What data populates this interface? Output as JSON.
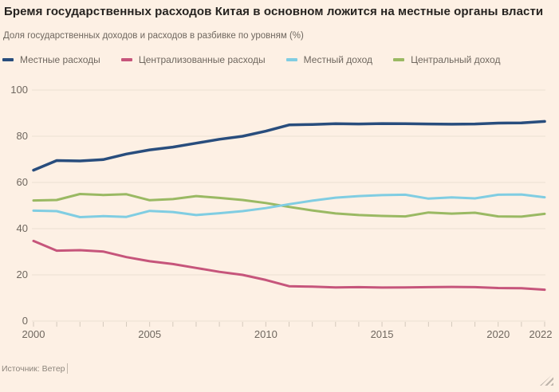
{
  "header": {
    "title": "Бремя государственных расходов Китая в основном ложится на местные органы власти",
    "subtitle": "Доля государственных доходов и расходов в разбивке по уровням (%)"
  },
  "footer": {
    "source": "Источник: Ветер"
  },
  "colors": {
    "background": "#fdf0e4",
    "title_text": "#262320",
    "muted_text": "#6f675f",
    "source_text": "#8d857c",
    "gridline": "#ecdfd2",
    "tick": "#d4c9bc",
    "local_expenditure": "#284d7d",
    "central_expenditure": "#c6557b",
    "local_revenue": "#80cde2",
    "central_revenue": "#9ab963"
  },
  "chart_data": {
    "type": "line",
    "title": "Бремя государственных расходов Китая в основном ложится на местные органы власти",
    "subtitle": "Доля государственных доходов и расходов в разбивке по уровням (%)",
    "source": "Источник: Ветер",
    "x": [
      2000,
      2001,
      2002,
      2003,
      2004,
      2005,
      2006,
      2007,
      2008,
      2009,
      2010,
      2011,
      2012,
      2013,
      2014,
      2015,
      2016,
      2017,
      2018,
      2019,
      2020,
      2021,
      2022
    ],
    "series": [
      {
        "key": "local-expenditure",
        "name": "Местные расходы",
        "color": "#284d7d",
        "stroke_width": 3.5,
        "values": [
          65.3,
          69.5,
          69.3,
          69.9,
          72.3,
          74.1,
          75.3,
          77.0,
          78.7,
          80.0,
          82.2,
          84.9,
          85.1,
          85.4,
          85.3,
          85.5,
          85.4,
          85.3,
          85.2,
          85.3,
          85.7,
          85.8,
          86.4
        ]
      },
      {
        "key": "central-expenditure",
        "name": "Централизованные расходы",
        "color": "#c6557b",
        "stroke_width": 3,
        "values": [
          34.7,
          30.5,
          30.7,
          30.1,
          27.7,
          25.9,
          24.7,
          23.0,
          21.3,
          20.0,
          17.8,
          15.1,
          14.9,
          14.6,
          14.7,
          14.5,
          14.6,
          14.7,
          14.8,
          14.7,
          14.3,
          14.2,
          13.6
        ]
      },
      {
        "key": "local-revenue",
        "name": "Местный доход",
        "color": "#80cde2",
        "stroke_width": 3,
        "values": [
          47.8,
          47.6,
          45.0,
          45.4,
          45.1,
          47.7,
          47.2,
          45.9,
          46.7,
          47.6,
          48.9,
          50.6,
          52.1,
          53.4,
          54.1,
          54.5,
          54.7,
          53.0,
          53.5,
          53.1,
          54.7,
          54.8,
          53.6
        ]
      },
      {
        "key": "central-revenue",
        "name": "Центральный доход",
        "color": "#9ab963",
        "stroke_width": 3,
        "values": [
          52.2,
          52.4,
          55.0,
          54.6,
          54.9,
          52.3,
          52.8,
          54.1,
          53.3,
          52.4,
          51.1,
          49.4,
          47.9,
          46.6,
          45.9,
          45.5,
          45.3,
          47.0,
          46.5,
          46.9,
          45.3,
          45.2,
          46.4
        ]
      }
    ],
    "ylim": [
      0,
      100
    ],
    "yticks": [
      0,
      20,
      40,
      60,
      80,
      100
    ],
    "xticks_labeled": [
      2000,
      2005,
      2010,
      2015,
      2020,
      2022
    ],
    "grid": "horizontal",
    "legend_position": "top"
  }
}
